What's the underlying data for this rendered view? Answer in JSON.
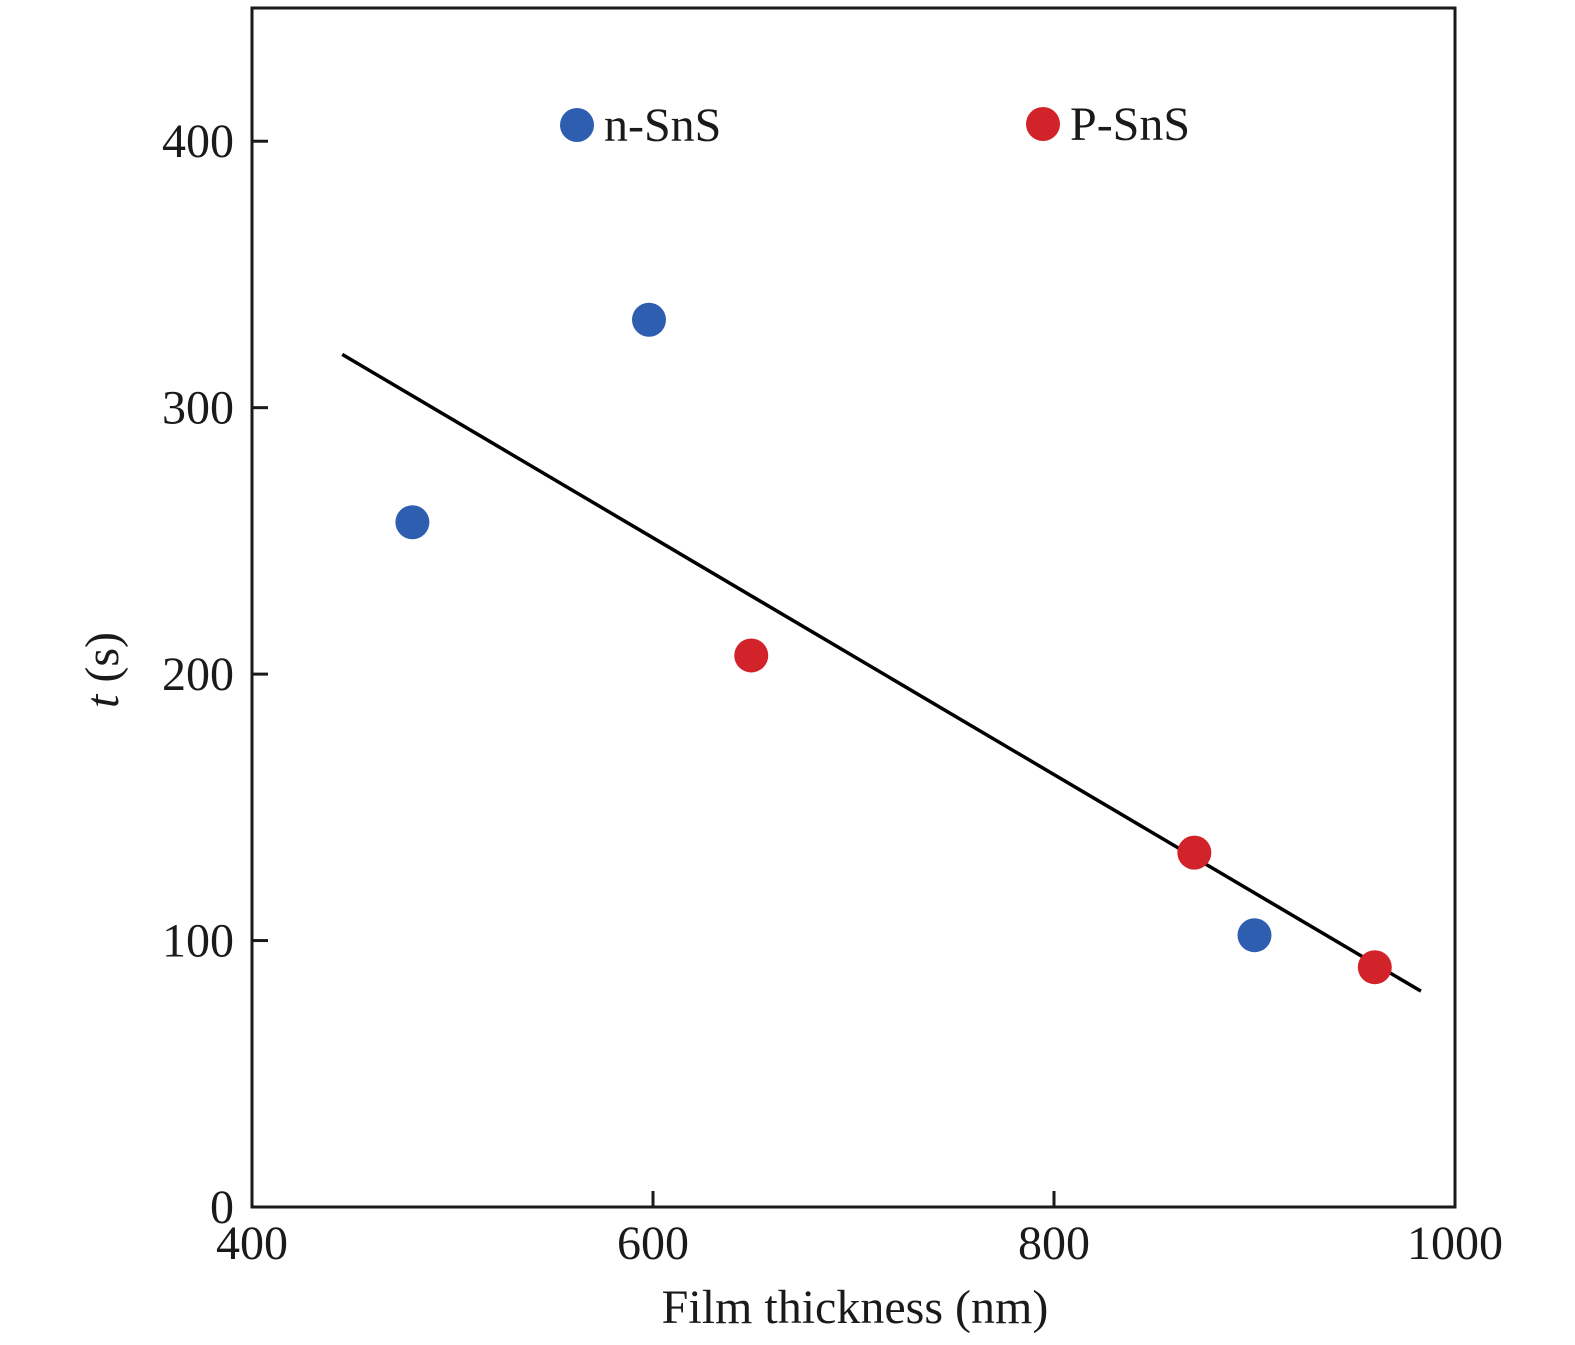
{
  "chart_data": {
    "type": "scatter",
    "title": "",
    "xlabel": "Film thickness (nm)",
    "ylabel_italic": "t",
    "ylabel_rest": " (s)",
    "xlim": [
      400,
      1000
    ],
    "ylim": [
      0,
      450
    ],
    "xticks": [
      400,
      600,
      800,
      1000
    ],
    "yticks": [
      0,
      100,
      200,
      300,
      400
    ],
    "legend_position": "top",
    "series": [
      {
        "name": "n-SnS",
        "color": "#2e5eb0",
        "points": [
          {
            "x": 480,
            "y": 257
          },
          {
            "x": 598,
            "y": 333
          },
          {
            "x": 900,
            "y": 102
          }
        ]
      },
      {
        "name": "P-SnS",
        "color": "#d2232a",
        "points": [
          {
            "x": 649,
            "y": 207
          },
          {
            "x": 870,
            "y": 133
          },
          {
            "x": 960,
            "y": 90
          }
        ]
      }
    ],
    "fit_line": {
      "color": "#000000",
      "points": [
        {
          "x": 445,
          "y": 320
        },
        {
          "x": 983,
          "y": 81
        }
      ]
    }
  }
}
